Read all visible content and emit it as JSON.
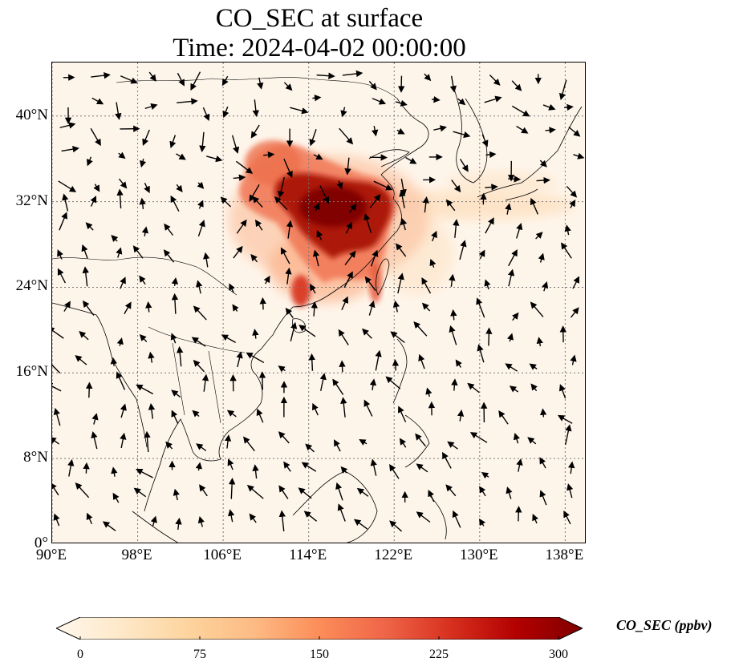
{
  "title": {
    "line1": "CO_SEC at surface",
    "line2": "Time: 2024-04-02 00:00:00"
  },
  "map": {
    "lat_ticks": [
      "40°N",
      "32°N",
      "24°N",
      "16°N",
      "8°N",
      "0°"
    ],
    "lat_values": [
      40,
      32,
      24,
      16,
      8,
      0
    ],
    "lon_ticks": [
      "90°E",
      "98°E",
      "106°E",
      "114°E",
      "122°E",
      "130°E",
      "138°E"
    ],
    "lon_values": [
      90,
      98,
      106,
      114,
      122,
      130,
      138
    ],
    "lon_range": [
      90,
      140
    ],
    "lat_range": [
      0,
      45
    ],
    "background_color": "#fef5ea",
    "gridlines": "dotted"
  },
  "colorbar": {
    "label": "CO_SEC (ppbv)",
    "ticks": [
      "0",
      "75",
      "150",
      "225",
      "300"
    ],
    "tick_values": [
      0,
      75,
      150,
      225,
      300
    ],
    "range": [
      0,
      300
    ],
    "extend": "both",
    "colormap": "OrRd",
    "colors": [
      "#fff7ec",
      "#fee8c8",
      "#fdd49e",
      "#fdbb84",
      "#fc8d59",
      "#ef6548",
      "#d7301f",
      "#b30000",
      "#7f0000"
    ]
  }
}
